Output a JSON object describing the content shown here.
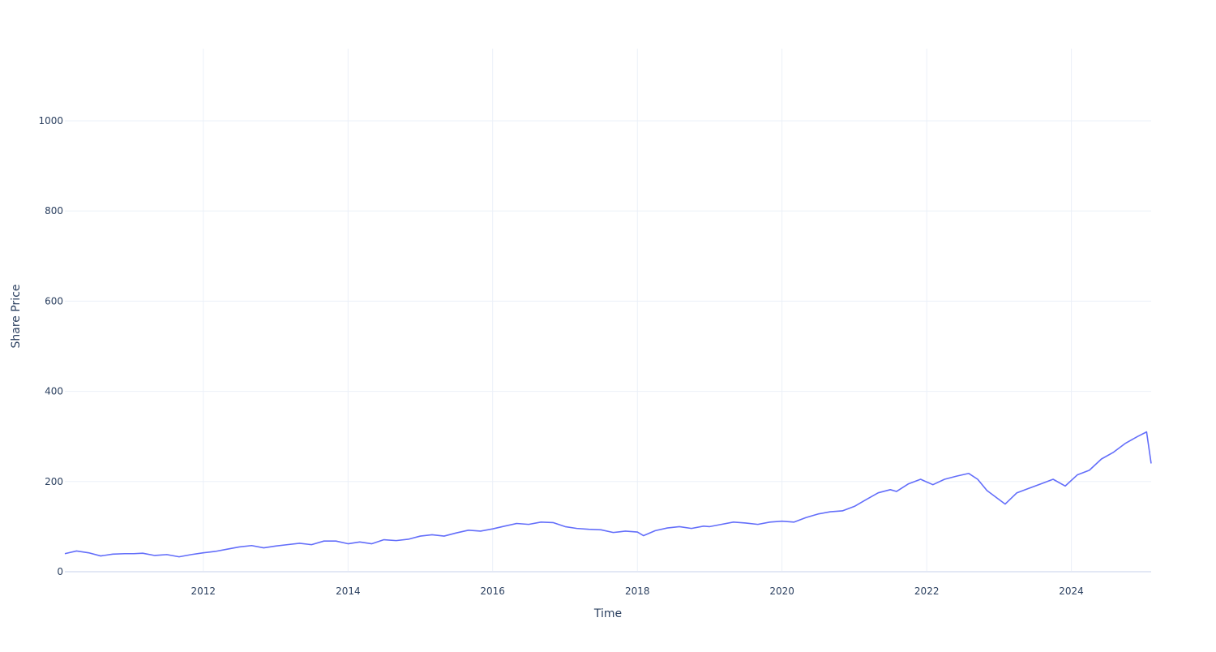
{
  "chart_data": {
    "type": "line",
    "title": "",
    "xlabel": "Time",
    "ylabel": "Share Price",
    "x_ticks": [
      "2012",
      "2014",
      "2016",
      "2018",
      "2020",
      "2022",
      "2024"
    ],
    "y_ticks": [
      0,
      200,
      400,
      600,
      800,
      1000
    ],
    "xlim": [
      "2010-02-01",
      "2025-02-07"
    ],
    "ylim": [
      0,
      1160
    ],
    "grid": true,
    "legend": "none",
    "series": [
      {
        "color": "#636efa",
        "points": [
          [
            "2010-02-01",
            40
          ],
          [
            "2010-04-01",
            46
          ],
          [
            "2010-06-01",
            42
          ],
          [
            "2010-08-01",
            35
          ],
          [
            "2010-10-01",
            39
          ],
          [
            "2010-12-01",
            40
          ],
          [
            "2011-01-15",
            40
          ],
          [
            "2011-03-01",
            41
          ],
          [
            "2011-05-01",
            36
          ],
          [
            "2011-07-01",
            38
          ],
          [
            "2011-09-01",
            33
          ],
          [
            "2011-11-01",
            38
          ],
          [
            "2012-01-01",
            42
          ],
          [
            "2012-03-01",
            45
          ],
          [
            "2012-05-01",
            50
          ],
          [
            "2012-07-01",
            55
          ],
          [
            "2012-09-01",
            58
          ],
          [
            "2012-11-01",
            53
          ],
          [
            "2013-01-01",
            57
          ],
          [
            "2013-03-01",
            60
          ],
          [
            "2013-05-01",
            63
          ],
          [
            "2013-07-01",
            60
          ],
          [
            "2013-09-01",
            68
          ],
          [
            "2013-11-01",
            68
          ],
          [
            "2014-01-01",
            62
          ],
          [
            "2014-03-01",
            66
          ],
          [
            "2014-05-01",
            62
          ],
          [
            "2014-07-01",
            71
          ],
          [
            "2014-09-01",
            69
          ],
          [
            "2014-11-01",
            72
          ],
          [
            "2015-01-01",
            79
          ],
          [
            "2015-03-01",
            82
          ],
          [
            "2015-05-01",
            79
          ],
          [
            "2015-07-01",
            86
          ],
          [
            "2015-09-01",
            92
          ],
          [
            "2015-11-01",
            90
          ],
          [
            "2016-01-01",
            95
          ],
          [
            "2016-03-01",
            101
          ],
          [
            "2016-05-01",
            107
          ],
          [
            "2016-07-01",
            105
          ],
          [
            "2016-09-01",
            110
          ],
          [
            "2016-11-01",
            109
          ],
          [
            "2017-01-01",
            100
          ],
          [
            "2017-03-01",
            96
          ],
          [
            "2017-05-01",
            94
          ],
          [
            "2017-07-01",
            93
          ],
          [
            "2017-09-01",
            87
          ],
          [
            "2017-11-01",
            90
          ],
          [
            "2018-01-01",
            88
          ],
          [
            "2018-02-01",
            80
          ],
          [
            "2018-04-01",
            91
          ],
          [
            "2018-06-01",
            97
          ],
          [
            "2018-08-01",
            100
          ],
          [
            "2018-10-01",
            96
          ],
          [
            "2018-12-01",
            101
          ],
          [
            "2019-01-01",
            100
          ],
          [
            "2019-03-01",
            105
          ],
          [
            "2019-05-01",
            110
          ],
          [
            "2019-07-01",
            108
          ],
          [
            "2019-09-01",
            105
          ],
          [
            "2019-11-01",
            110
          ],
          [
            "2020-01-01",
            112
          ],
          [
            "2020-03-01",
            110
          ],
          [
            "2020-05-01",
            120
          ],
          [
            "2020-07-01",
            128
          ],
          [
            "2020-09-01",
            133
          ],
          [
            "2020-11-01",
            135
          ],
          [
            "2021-01-01",
            145
          ],
          [
            "2021-03-01",
            160
          ],
          [
            "2021-05-01",
            175
          ],
          [
            "2021-07-01",
            182
          ],
          [
            "2021-08-01",
            178
          ],
          [
            "2021-10-01",
            195
          ],
          [
            "2021-12-01",
            205
          ],
          [
            "2022-02-01",
            193
          ],
          [
            "2022-04-01",
            205
          ],
          [
            "2022-06-01",
            212
          ],
          [
            "2022-08-01",
            218
          ],
          [
            "2022-09-15",
            205
          ],
          [
            "2022-11-01",
            180
          ],
          [
            "2023-01-01",
            160
          ],
          [
            "2023-02-01",
            150
          ],
          [
            "2023-04-01",
            175
          ],
          [
            "2023-06-01",
            185
          ],
          [
            "2023-08-01",
            195
          ],
          [
            "2023-10-01",
            205
          ],
          [
            "2023-12-01",
            190
          ],
          [
            "2024-02-01",
            215
          ],
          [
            "2024-04-01",
            225
          ],
          [
            "2024-06-01",
            250
          ],
          [
            "2024-08-01",
            265
          ],
          [
            "2024-10-01",
            285
          ],
          [
            "2024-12-01",
            300
          ],
          [
            "2025-01-15",
            310
          ],
          [
            "2025-02-07",
            240
          ]
        ]
      }
    ]
  }
}
